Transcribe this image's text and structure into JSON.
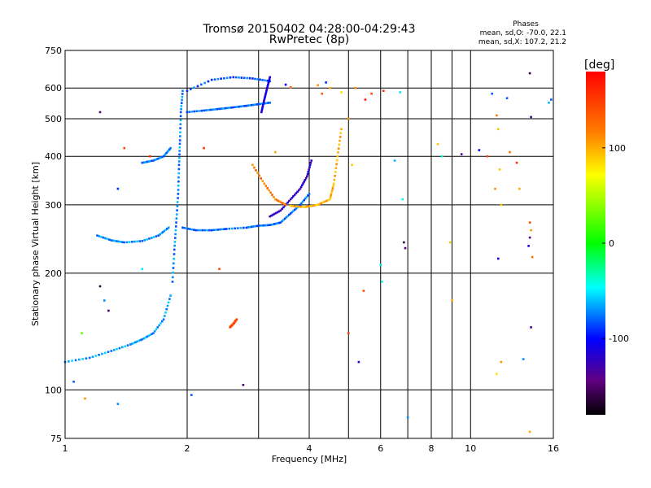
{
  "chart_data": {
    "type": "scatter",
    "title": "Tromsø 20150402 04:28:00-04:29:43",
    "subtitle": "RwPretec (8p)",
    "xlabel": "Frequency [MHz]",
    "ylabel": "Stationary phase Virtual Height [km]",
    "x_scale": "log",
    "y_scale": "log",
    "xlim": [
      1,
      16
    ],
    "ylim": [
      75,
      750
    ],
    "x_ticks": [
      1,
      2,
      4,
      6,
      8,
      10,
      16
    ],
    "x_tick_labels": [
      "1",
      "2",
      "4",
      "6",
      "8",
      "10",
      "16"
    ],
    "x_minor_ticks": [
      3,
      5,
      7,
      9
    ],
    "y_ticks": [
      75,
      100,
      200,
      300,
      400,
      500,
      600,
      750
    ],
    "y_tick_labels": [
      "75",
      "100",
      "200",
      "300",
      "400",
      "500",
      "600",
      "750"
    ],
    "grid": true,
    "info": {
      "heading": "Phases",
      "line_o": "mean, sd,O: -70.0, 22.1",
      "line_x": "mean, sd,X: 107.2, 21.2"
    },
    "colorbar": {
      "label": "[deg]",
      "min": -180,
      "max": 180,
      "ticks": [
        100,
        0,
        -100
      ],
      "tick_labels": [
        "100",
        "0",
        "-100"
      ]
    },
    "traces": [
      {
        "x": [
          1.0,
          1.15,
          1.3,
          1.45,
          1.55,
          1.65,
          1.75,
          1.82
        ],
        "y": [
          118,
          121,
          126,
          131,
          135,
          140,
          152,
          175
        ],
        "phase": -65
      },
      {
        "x": [
          1.84,
          1.86,
          1.88,
          1.9,
          1.91,
          1.92,
          1.93,
          1.95
        ],
        "y": [
          190,
          230,
          270,
          320,
          380,
          440,
          520,
          590
        ],
        "phase": -70
      },
      {
        "x": [
          1.2,
          1.3,
          1.4,
          1.55,
          1.7,
          1.8
        ],
        "y": [
          250,
          243,
          240,
          242,
          250,
          262
        ],
        "phase": -68
      },
      {
        "x": [
          1.55,
          1.65,
          1.75,
          1.82
        ],
        "y": [
          385,
          390,
          400,
          420
        ],
        "phase": -72
      },
      {
        "x": [
          1.95,
          2.1,
          2.3,
          2.5,
          2.8,
          3.0,
          3.2,
          3.4,
          3.6,
          3.8,
          4.0
        ],
        "y": [
          262,
          258,
          258,
          260,
          262,
          265,
          266,
          270,
          285,
          300,
          320
        ],
        "phase": -75
      },
      {
        "x": [
          3.2,
          3.4,
          3.6,
          3.8,
          3.95,
          4.05
        ],
        "y": [
          280,
          290,
          310,
          330,
          355,
          390
        ],
        "phase": -120
      },
      {
        "x": [
          2.9,
          3.1,
          3.3,
          3.5
        ],
        "y": [
          380,
          340,
          310,
          300
        ],
        "phase": 130
      },
      {
        "x": [
          3.6,
          3.9,
          4.2,
          4.5,
          4.6,
          4.7,
          4.8
        ],
        "y": [
          298,
          296,
          300,
          310,
          340,
          400,
          470
        ],
        "phase": 110
      },
      {
        "x": [
          2.0,
          2.3,
          2.6,
          2.9,
          3.2
        ],
        "y": [
          590,
          630,
          640,
          635,
          625
        ],
        "phase": -80
      },
      {
        "x": [
          2.0,
          2.2,
          2.4,
          2.6,
          2.8,
          3.0,
          3.2
        ],
        "y": [
          520,
          525,
          530,
          535,
          540,
          545,
          550
        ],
        "phase": -75
      },
      {
        "x": [
          3.05,
          3.1,
          3.15,
          3.2
        ],
        "y": [
          520,
          560,
          600,
          640
        ],
        "phase": -110
      },
      {
        "x": [
          2.55,
          2.6,
          2.65
        ],
        "y": [
          145,
          148,
          152
        ],
        "phase": 150
      }
    ],
    "scatter": [
      {
        "x": 1.22,
        "y": 520,
        "phase": -150
      },
      {
        "x": 1.4,
        "y": 420,
        "phase": 150
      },
      {
        "x": 1.62,
        "y": 400,
        "phase": 160
      },
      {
        "x": 1.35,
        "y": 330,
        "phase": -90
      },
      {
        "x": 1.22,
        "y": 185,
        "phase": -160
      },
      {
        "x": 1.25,
        "y": 170,
        "phase": -70
      },
      {
        "x": 1.28,
        "y": 160,
        "phase": -150
      },
      {
        "x": 1.1,
        "y": 140,
        "phase": 30
      },
      {
        "x": 1.05,
        "y": 105,
        "phase": -80
      },
      {
        "x": 1.12,
        "y": 95,
        "phase": 120
      },
      {
        "x": 1.35,
        "y": 92,
        "phase": -70
      },
      {
        "x": 1.55,
        "y": 205,
        "phase": -50
      },
      {
        "x": 2.05,
        "y": 97,
        "phase": -80
      },
      {
        "x": 2.2,
        "y": 420,
        "phase": 160
      },
      {
        "x": 2.4,
        "y": 205,
        "phase": 150
      },
      {
        "x": 2.75,
        "y": 103,
        "phase": -150
      },
      {
        "x": 3.3,
        "y": 410,
        "phase": 110
      },
      {
        "x": 3.5,
        "y": 612,
        "phase": -100
      },
      {
        "x": 3.6,
        "y": 603,
        "phase": 130
      },
      {
        "x": 4.2,
        "y": 610,
        "phase": 120
      },
      {
        "x": 4.4,
        "y": 620,
        "phase": -90
      },
      {
        "x": 4.3,
        "y": 580,
        "phase": 140
      },
      {
        "x": 4.5,
        "y": 600,
        "phase": 110
      },
      {
        "x": 4.8,
        "y": 585,
        "phase": 90
      },
      {
        "x": 5.2,
        "y": 600,
        "phase": 120
      },
      {
        "x": 5.7,
        "y": 580,
        "phase": 150
      },
      {
        "x": 5.5,
        "y": 560,
        "phase": 170
      },
      {
        "x": 6.1,
        "y": 590,
        "phase": 160
      },
      {
        "x": 6.7,
        "y": 585,
        "phase": -50
      },
      {
        "x": 6.0,
        "y": 210,
        "phase": -50
      },
      {
        "x": 6.05,
        "y": 190,
        "phase": -40
      },
      {
        "x": 5.45,
        "y": 180,
        "phase": 150
      },
      {
        "x": 6.5,
        "y": 390,
        "phase": -60
      },
      {
        "x": 6.85,
        "y": 240,
        "phase": -160
      },
      {
        "x": 6.9,
        "y": 232,
        "phase": -150
      },
      {
        "x": 6.8,
        "y": 310,
        "phase": -40
      },
      {
        "x": 5.0,
        "y": 500,
        "phase": 120
      },
      {
        "x": 5.1,
        "y": 380,
        "phase": 100
      },
      {
        "x": 7.0,
        "y": 85,
        "phase": -70
      },
      {
        "x": 5.0,
        "y": 140,
        "phase": 150
      },
      {
        "x": 5.3,
        "y": 118,
        "phase": -120
      },
      {
        "x": 8.3,
        "y": 430,
        "phase": 100
      },
      {
        "x": 8.5,
        "y": 400,
        "phase": -40
      },
      {
        "x": 8.9,
        "y": 240,
        "phase": 100
      },
      {
        "x": 9.0,
        "y": 170,
        "phase": 110
      },
      {
        "x": 9.5,
        "y": 405,
        "phase": -130
      },
      {
        "x": 10.5,
        "y": 415,
        "phase": -100
      },
      {
        "x": 11.0,
        "y": 400,
        "phase": 150
      },
      {
        "x": 11.3,
        "y": 580,
        "phase": -80
      },
      {
        "x": 11.6,
        "y": 510,
        "phase": 130
      },
      {
        "x": 11.7,
        "y": 470,
        "phase": 100
      },
      {
        "x": 11.8,
        "y": 370,
        "phase": 100
      },
      {
        "x": 11.5,
        "y": 330,
        "phase": 120
      },
      {
        "x": 11.9,
        "y": 300,
        "phase": 100
      },
      {
        "x": 11.7,
        "y": 218,
        "phase": -110
      },
      {
        "x": 11.9,
        "y": 118,
        "phase": 120
      },
      {
        "x": 11.6,
        "y": 110,
        "phase": 90
      },
      {
        "x": 12.3,
        "y": 565,
        "phase": -80
      },
      {
        "x": 12.5,
        "y": 410,
        "phase": 130
      },
      {
        "x": 13.0,
        "y": 385,
        "phase": 160
      },
      {
        "x": 13.2,
        "y": 330,
        "phase": 110
      },
      {
        "x": 13.5,
        "y": 120,
        "phase": -70
      },
      {
        "x": 14.0,
        "y": 655,
        "phase": -160
      },
      {
        "x": 14.1,
        "y": 505,
        "phase": -130
      },
      {
        "x": 14.0,
        "y": 270,
        "phase": 150
      },
      {
        "x": 14.1,
        "y": 258,
        "phase": 120
      },
      {
        "x": 14.0,
        "y": 247,
        "phase": -140
      },
      {
        "x": 13.9,
        "y": 235,
        "phase": -110
      },
      {
        "x": 14.2,
        "y": 220,
        "phase": 130
      },
      {
        "x": 14.1,
        "y": 145,
        "phase": -130
      },
      {
        "x": 14.0,
        "y": 78,
        "phase": 110
      },
      {
        "x": 15.6,
        "y": 550,
        "phase": -60
      },
      {
        "x": 15.8,
        "y": 560,
        "phase": -80
      }
    ]
  }
}
